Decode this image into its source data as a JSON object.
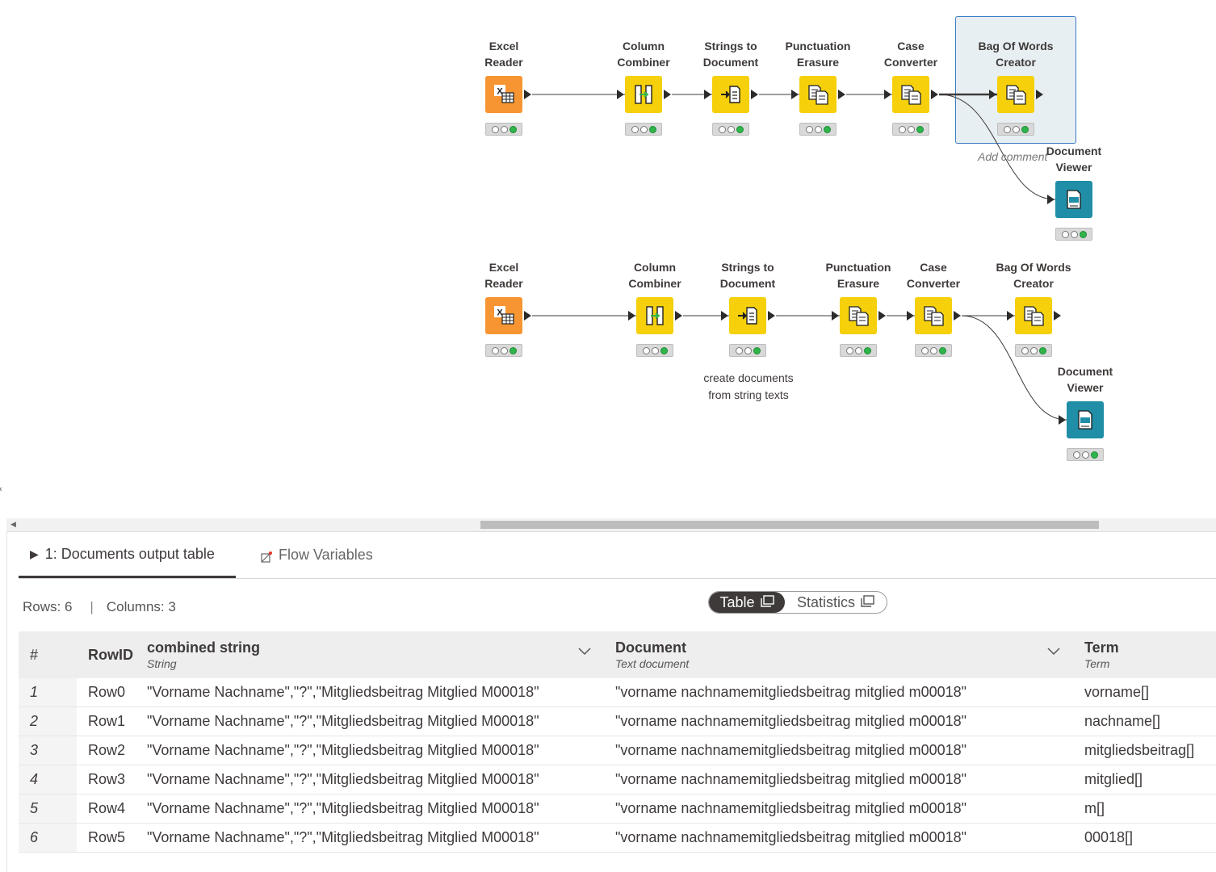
{
  "workflow": {
    "row1": [
      {
        "title": [
          "Excel",
          "Reader"
        ],
        "color": "#f79533",
        "icon": "excel-reader-icon"
      },
      {
        "title": [
          "Column",
          "Combiner"
        ],
        "color": "#f5d00b",
        "icon": "column-combiner-icon"
      },
      {
        "title": [
          "Strings to",
          "Document"
        ],
        "color": "#f5d00b",
        "icon": "strings-to-document-icon"
      },
      {
        "title": [
          "Punctuation",
          "Erasure"
        ],
        "color": "#f5d00b",
        "icon": "punctuation-erasure-icon"
      },
      {
        "title": [
          "Case",
          "Converter"
        ],
        "color": "#f5d00b",
        "icon": "case-converter-icon"
      },
      {
        "title": [
          "Bag Of Words",
          "Creator"
        ],
        "color": "#f5d00b",
        "icon": "bag-of-words-icon"
      },
      {
        "title": [
          "Document",
          "Viewer"
        ],
        "color": "#1f8ea6",
        "icon": "document-viewer-icon"
      }
    ],
    "row2": [
      {
        "title": [
          "Excel",
          "Reader"
        ],
        "color": "#f79533",
        "icon": "excel-reader-icon"
      },
      {
        "title": [
          "Column",
          "Combiner"
        ],
        "color": "#f5d00b",
        "icon": "column-combiner-icon"
      },
      {
        "title": [
          "Strings to",
          "Document"
        ],
        "color": "#f5d00b",
        "icon": "strings-to-document-icon"
      },
      {
        "title": [
          "Punctuation",
          "Erasure"
        ],
        "color": "#f5d00b",
        "icon": "punctuation-erasure-icon"
      },
      {
        "title": [
          "Case",
          "Converter"
        ],
        "color": "#f5d00b",
        "icon": "case-converter-icon"
      },
      {
        "title": [
          "Bag Of Words",
          "Creator"
        ],
        "color": "#f5d00b",
        "icon": "bag-of-words-icon"
      },
      {
        "title": [
          "Document",
          "Viewer"
        ],
        "color": "#1f8ea6",
        "icon": "document-viewer-icon"
      }
    ],
    "annotation": [
      "create documents",
      "from string texts"
    ],
    "add_comment": "Add comment"
  },
  "panel": {
    "tabs": [
      {
        "label": "1: Documents output table",
        "active": true,
        "icon": "play-icon"
      },
      {
        "label": "Flow Variables",
        "active": false,
        "icon": "flow-variable-icon"
      }
    ],
    "rows_label": "Rows: 6",
    "columns_label": "Columns: 3",
    "separator": "|",
    "toggle": {
      "table": "Table",
      "statistics": "Statistics"
    }
  },
  "table": {
    "index_header": "#",
    "rowid_header": "RowID",
    "columns": [
      {
        "name": "combined string",
        "type": "String"
      },
      {
        "name": "Document",
        "type": "Text document"
      },
      {
        "name": "Term",
        "type": "Term"
      }
    ],
    "rows": [
      {
        "idx": "1",
        "rowid": "Row0",
        "combined": "\"Vorname Nachname\",\"?\",\"Mitgliedsbeitrag Mitglied M00018\"",
        "document": "\"vorname nachnamemitgliedsbeitrag mitglied m00018\"",
        "term": "vorname[]"
      },
      {
        "idx": "2",
        "rowid": "Row1",
        "combined": "\"Vorname Nachname\",\"?\",\"Mitgliedsbeitrag Mitglied M00018\"",
        "document": "\"vorname nachnamemitgliedsbeitrag mitglied m00018\"",
        "term": "nachname[]"
      },
      {
        "idx": "3",
        "rowid": "Row2",
        "combined": "\"Vorname Nachname\",\"?\",\"Mitgliedsbeitrag Mitglied M00018\"",
        "document": "\"vorname nachnamemitgliedsbeitrag mitglied m00018\"",
        "term": "mitgliedsbeitrag[]"
      },
      {
        "idx": "4",
        "rowid": "Row3",
        "combined": "\"Vorname Nachname\",\"?\",\"Mitgliedsbeitrag Mitglied M00018\"",
        "document": "\"vorname nachnamemitgliedsbeitrag mitglied m00018\"",
        "term": "mitglied[]"
      },
      {
        "idx": "5",
        "rowid": "Row4",
        "combined": "\"Vorname Nachname\",\"?\",\"Mitgliedsbeitrag Mitglied M00018\"",
        "document": "\"vorname nachnamemitgliedsbeitrag mitglied m00018\"",
        "term": "m[]"
      },
      {
        "idx": "6",
        "rowid": "Row5",
        "combined": "\"Vorname Nachname\",\"?\",\"Mitgliedsbeitrag Mitglied M00018\"",
        "document": "\"vorname nachnamemitgliedsbeitrag mitglied m00018\"",
        "term": "00018[]"
      }
    ]
  }
}
